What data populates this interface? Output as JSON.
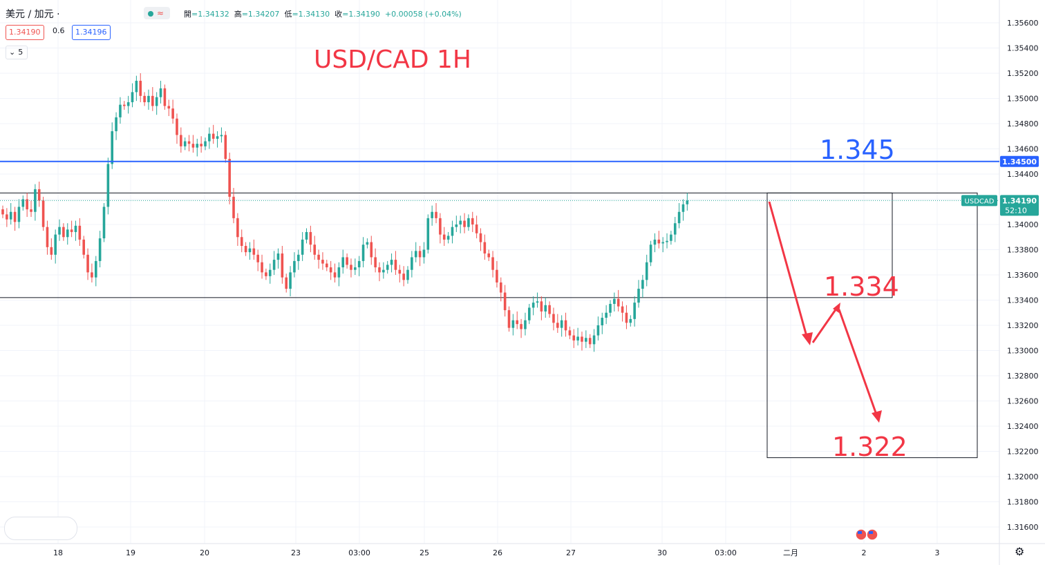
{
  "header": {
    "symbol": "美元 / 加元 ·",
    "ohlc": [
      {
        "label": "開",
        "value": "=1.34132"
      },
      {
        "label": "高",
        "value": "=1.34207"
      },
      {
        "label": "低",
        "value": "=1.34130"
      },
      {
        "label": "收",
        "value": "=1.34190"
      },
      {
        "label": "",
        "value": "+0.00058 (+0.04%)"
      }
    ],
    "bid": "1.34190",
    "spread": "0.6",
    "ask": "1.34196",
    "indicator_count": "5"
  },
  "colors": {
    "up": "#26a69a",
    "down": "#ef5350",
    "annotation": "#f23645",
    "line": "#2962ff"
  },
  "chart_data": {
    "type": "candlestick",
    "title": "USD/CAD 1H",
    "ylim": [
      1.315,
      1.357
    ],
    "y_ticks": [
      "1.35600",
      "1.35400",
      "1.35200",
      "1.35000",
      "1.34800",
      "1.34600",
      "1.34400",
      "1.34200",
      "1.34000",
      "1.33800",
      "1.33600",
      "1.33400",
      "1.33200",
      "1.33000",
      "1.32800",
      "1.32600",
      "1.32400",
      "1.32200",
      "1.32000",
      "1.31800",
      "1.31600"
    ],
    "x_ticks": [
      "18",
      "19",
      "20",
      "23",
      "03:00",
      "25",
      "26",
      "27",
      "30",
      "03:00",
      "二月",
      "2",
      "3"
    ],
    "close_series": [
      1.3408,
      1.3404,
      1.341,
      1.3402,
      1.3414,
      1.342,
      1.3412,
      1.341,
      1.3428,
      1.3419,
      1.3398,
      1.3382,
      1.3376,
      1.3392,
      1.3398,
      1.339,
      1.3396,
      1.3394,
      1.3399,
      1.3388,
      1.3376,
      1.3362,
      1.3358,
      1.3371,
      1.3389,
      1.3414,
      1.3448,
      1.3474,
      1.3485,
      1.3495,
      1.3494,
      1.3497,
      1.3505,
      1.3514,
      1.3502,
      1.3497,
      1.3502,
      1.3494,
      1.3501,
      1.3508,
      1.3494,
      1.3492,
      1.3484,
      1.3471,
      1.3462,
      1.3466,
      1.3464,
      1.3461,
      1.3464,
      1.3462,
      1.3466,
      1.3472,
      1.3468,
      1.347,
      1.3471,
      1.3452,
      1.3422,
      1.3405,
      1.339,
      1.3383,
      1.3378,
      1.3381,
      1.3376,
      1.337,
      1.3362,
      1.3359,
      1.3364,
      1.3372,
      1.3377,
      1.3358,
      1.3349,
      1.3362,
      1.3371,
      1.3376,
      1.3388,
      1.3394,
      1.3384,
      1.3376,
      1.3372,
      1.3369,
      1.3366,
      1.3362,
      1.3358,
      1.3366,
      1.3374,
      1.3368,
      1.3364,
      1.3366,
      1.3371,
      1.3384,
      1.3386,
      1.3374,
      1.3366,
      1.3362,
      1.3364,
      1.3368,
      1.3372,
      1.3364,
      1.3361,
      1.3356,
      1.3364,
      1.3374,
      1.3379,
      1.3374,
      1.338,
      1.3405,
      1.341,
      1.3405,
      1.3392,
      1.3388,
      1.3391,
      1.3398,
      1.34,
      1.3403,
      1.3398,
      1.3405,
      1.34,
      1.3393,
      1.3386,
      1.3377,
      1.3374,
      1.3364,
      1.3354,
      1.3346,
      1.3332,
      1.3318,
      1.3324,
      1.3321,
      1.3317,
      1.3324,
      1.3334,
      1.3338,
      1.3339,
      1.3331,
      1.3336,
      1.3329,
      1.3322,
      1.3318,
      1.3324,
      1.3316,
      1.3312,
      1.3308,
      1.3311,
      1.3307,
      1.331,
      1.3305,
      1.3312,
      1.332,
      1.3326,
      1.333,
      1.3337,
      1.3341,
      1.3335,
      1.333,
      1.3322,
      1.3325,
      1.3338,
      1.3349,
      1.3356,
      1.337,
      1.3384,
      1.3388,
      1.3385,
      1.3386,
      1.3387,
      1.3392,
      1.3401,
      1.341,
      1.3416,
      1.3419
    ],
    "price_line": {
      "value": 1.345,
      "label": "1.34500"
    },
    "current_price": {
      "symbol": "USDCAD",
      "value": "1.34190",
      "countdown": "52:10"
    },
    "annotations": [
      "1.345",
      "1.334",
      "1.322"
    ]
  }
}
